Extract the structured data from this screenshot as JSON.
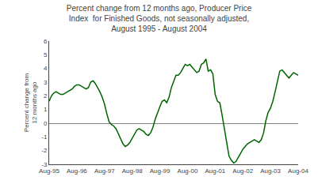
{
  "chart_data": {
    "type": "line",
    "title": "Percent change from 12 months ago, Producer Price\nIndex  for Finished Goods, not seasonally adjusted,\nAugust 1995 - August 2004",
    "ylabel": "Percent change from\n12 months ago",
    "categories": [
      "Aug-95",
      null,
      null,
      null,
      null,
      null,
      null,
      null,
      null,
      null,
      null,
      null,
      "Aug-96",
      null,
      null,
      null,
      null,
      null,
      null,
      null,
      null,
      null,
      null,
      null,
      "Aug-97",
      null,
      null,
      null,
      null,
      null,
      null,
      null,
      null,
      null,
      null,
      null,
      "Aug-98",
      null,
      null,
      null,
      null,
      null,
      null,
      null,
      null,
      null,
      null,
      null,
      "Aug-99",
      null,
      null,
      null,
      null,
      null,
      null,
      null,
      null,
      null,
      null,
      null,
      "Aug-00",
      null,
      null,
      null,
      null,
      null,
      null,
      null,
      null,
      null,
      null,
      null,
      "Aug-01",
      null,
      null,
      null,
      null,
      null,
      null,
      null,
      null,
      null,
      null,
      null,
      "Aug-02",
      null,
      null,
      null,
      null,
      null,
      null,
      null,
      null,
      null,
      null,
      null,
      "Aug-03",
      null,
      null,
      null,
      null,
      null,
      null,
      null,
      null,
      null,
      null,
      null,
      "Aug-04"
    ],
    "values": [
      1.6,
      2.0,
      2.2,
      2.3,
      2.2,
      2.1,
      2.1,
      2.2,
      2.3,
      2.4,
      2.5,
      2.7,
      2.8,
      2.8,
      2.7,
      2.6,
      2.5,
      2.6,
      3.0,
      3.1,
      2.9,
      2.6,
      2.3,
      1.9,
      1.4,
      0.7,
      0.1,
      -0.1,
      -0.2,
      -0.4,
      -0.8,
      -1.2,
      -1.5,
      -1.7,
      -1.6,
      -1.4,
      -1.1,
      -0.8,
      -0.5,
      -0.4,
      -0.5,
      -0.6,
      -0.8,
      -0.9,
      -0.7,
      -0.3,
      0.3,
      0.8,
      1.2,
      1.6,
      1.7,
      1.5,
      1.9,
      2.6,
      3.1,
      3.5,
      3.5,
      3.7,
      4.0,
      4.3,
      4.2,
      4.3,
      4.1,
      3.9,
      3.7,
      3.8,
      4.3,
      4.4,
      4.7,
      3.8,
      3.9,
      3.6,
      2.1,
      1.6,
      1.5,
      0.6,
      -0.3,
      -1.4,
      -2.4,
      -2.7,
      -2.9,
      -2.8,
      -2.5,
      -2.2,
      -1.9,
      -1.7,
      -1.5,
      -1.4,
      -1.3,
      -1.2,
      -1.3,
      -1.4,
      -1.2,
      -0.7,
      0.2,
      0.8,
      1.1,
      1.6,
      2.3,
      3.1,
      3.8,
      3.9,
      3.7,
      3.5,
      3.3,
      3.5,
      3.7,
      3.6,
      3.5
    ],
    "color": "#006400",
    "ylim": [
      -3.0,
      6.0
    ],
    "yticks": [
      -3.0,
      -2.0,
      -1.0,
      0.0,
      1.0,
      2.0,
      3.0,
      4.0,
      5.0,
      6.0
    ],
    "grid": false
  }
}
